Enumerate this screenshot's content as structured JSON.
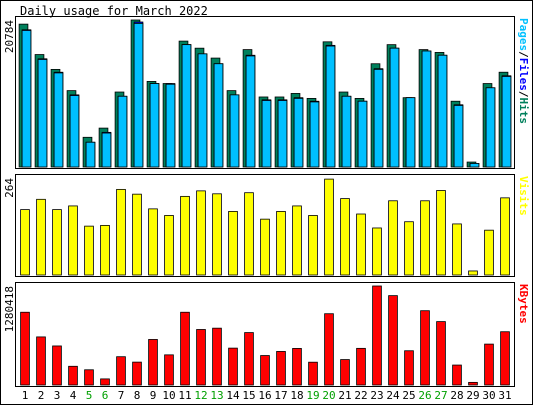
{
  "title": "Daily usage for March 2022",
  "colors": {
    "background": "#FFFFFF",
    "panel_border": "#000000",
    "hits": "#00805C",
    "files": "#0000FF",
    "pages": "#00C0FF",
    "visits": "#FFFF00",
    "kbytes": "#FF0000",
    "weekend_label": "#00A000",
    "weekday_label": "#000000"
  },
  "chart_data": [
    {
      "type": "bar",
      "title": "Daily usage for March 2022",
      "panel": "hits-files-pages",
      "categories": [
        "1",
        "2",
        "3",
        "4",
        "5",
        "6",
        "7",
        "8",
        "9",
        "10",
        "11",
        "12",
        "13",
        "14",
        "15",
        "16",
        "17",
        "18",
        "19",
        "20",
        "21",
        "22",
        "23",
        "24",
        "25",
        "26",
        "27",
        "28",
        "29",
        "30",
        "31"
      ],
      "weekend_days": [
        "5",
        "6",
        "12",
        "13",
        "19",
        "20",
        "26",
        "27"
      ],
      "ytick_label": "20784",
      "ylim": [
        0,
        20784
      ],
      "legend": [
        "Pages",
        "Files",
        "Hits"
      ],
      "legend_placement": "right-vertical",
      "series": [
        {
          "name": "Hits",
          "values": [
            20200,
            15900,
            13800,
            10800,
            4200,
            5500,
            10600,
            20784,
            12100,
            11800,
            17800,
            16800,
            15400,
            10800,
            16600,
            9900,
            9900,
            10400,
            9700,
            17700,
            10600,
            9700,
            14600,
            17300,
            9800,
            16600,
            16200,
            9300,
            700,
            11800,
            13400
          ]
        },
        {
          "name": "Files",
          "values": [
            19400,
            15300,
            13400,
            10200,
            3500,
            4900,
            10000,
            20500,
            11800,
            11800,
            17300,
            16000,
            14600,
            10200,
            15800,
            9500,
            9500,
            9800,
            9300,
            17200,
            10000,
            9300,
            13900,
            16800,
            9800,
            16400,
            15800,
            8800,
            500,
            11200,
            12900
          ]
        },
        {
          "name": "Pages",
          "values": [
            19300,
            15200,
            13300,
            10100,
            3500,
            4800,
            10000,
            20300,
            11800,
            11700,
            17300,
            16000,
            14600,
            10200,
            15700,
            9400,
            9400,
            9700,
            9200,
            17100,
            10000,
            9300,
            13800,
            16800,
            9800,
            16400,
            15800,
            8700,
            500,
            11200,
            12800
          ]
        }
      ]
    },
    {
      "type": "bar",
      "panel": "visits",
      "categories": [
        "1",
        "2",
        "3",
        "4",
        "5",
        "6",
        "7",
        "8",
        "9",
        "10",
        "11",
        "12",
        "13",
        "14",
        "15",
        "16",
        "17",
        "18",
        "19",
        "20",
        "21",
        "22",
        "23",
        "24",
        "25",
        "26",
        "27",
        "28",
        "29",
        "30",
        "31"
      ],
      "ytick_label": "264",
      "ylim": [
        0,
        264
      ],
      "legend": [
        "Visits"
      ],
      "legend_placement": "right-vertical",
      "series": [
        {
          "name": "Visits",
          "values": [
            178,
            206,
            178,
            188,
            133,
            135,
            233,
            220,
            180,
            162,
            214,
            229,
            221,
            173,
            224,
            152,
            173,
            188,
            162,
            261,
            208,
            166,
            128,
            202,
            145,
            202,
            230,
            139,
            11,
            122,
            210
          ]
        }
      ]
    },
    {
      "type": "bar",
      "panel": "kbytes",
      "categories": [
        "1",
        "2",
        "3",
        "4",
        "5",
        "6",
        "7",
        "8",
        "9",
        "10",
        "11",
        "12",
        "13",
        "14",
        "15",
        "16",
        "17",
        "18",
        "19",
        "20",
        "21",
        "22",
        "23",
        "24",
        "25",
        "26",
        "27",
        "28",
        "29",
        "30",
        "31"
      ],
      "ytick_label": "1280418",
      "ylim": [
        0,
        1280418
      ],
      "legend": [
        "KBytes"
      ],
      "legend_placement": "right-vertical",
      "series": [
        {
          "name": "KBytes",
          "values": [
            941000,
            622000,
            505000,
            242000,
            197000,
            79000,
            366000,
            296000,
            589000,
            390000,
            941000,
            718000,
            735000,
            477000,
            678000,
            381000,
            434000,
            473000,
            295000,
            922000,
            329000,
            474000,
            1280418,
            1156000,
            443000,
            961000,
            820000,
            258000,
            34000,
            529000,
            689000
          ]
        }
      ]
    }
  ]
}
